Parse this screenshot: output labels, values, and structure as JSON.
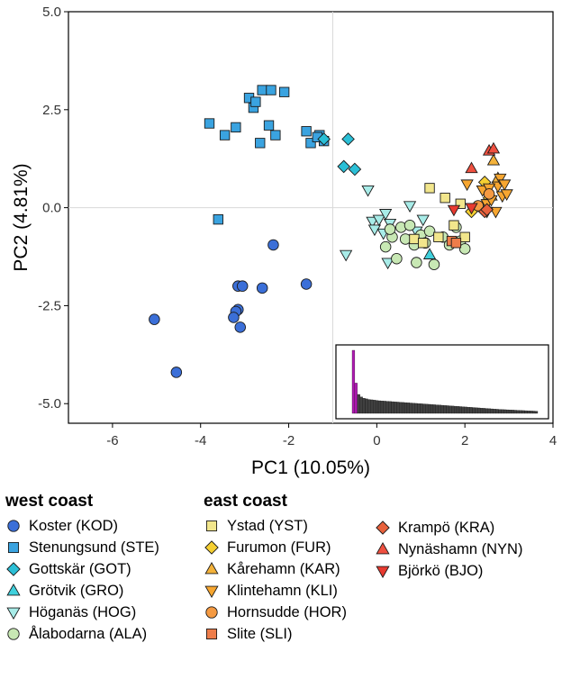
{
  "chart_data": {
    "type": "scatter",
    "xlabel": "PC1 (10.05%)",
    "ylabel": "PC2 (4.81%)",
    "xlim": [
      -7,
      4
    ],
    "ylim": [
      -5.5,
      5.0
    ],
    "xticks": [
      -6,
      -4,
      -2,
      0,
      2,
      4
    ],
    "yticks": [
      5.0,
      2.5,
      0.0,
      -2.5,
      -5.0
    ],
    "ytick_labels": [
      "5.0",
      "2.5",
      "0.0",
      "-2.5",
      "-5.0"
    ],
    "xtick_labels": [
      "-6",
      "-4",
      "-2",
      "0",
      "2",
      "4"
    ],
    "reference_lines": {
      "x": -1,
      "y": 0
    },
    "groups": [
      {
        "region": "west coast"
      },
      {
        "region": "east coast"
      }
    ],
    "series": [
      {
        "name": "Koster (KOD)",
        "region": "west",
        "shape": "circle",
        "color": "#3b6fd8",
        "x": [
          -5.05,
          -4.55,
          -3.15,
          -3.15,
          -3.05,
          -3.2,
          -3.25,
          -2.6,
          -2.35,
          -1.6,
          -3.1
        ],
        "y": [
          -2.85,
          -4.2,
          -2.6,
          -2.0,
          -2.0,
          -2.65,
          -2.8,
          -2.05,
          -0.95,
          -1.95,
          -3.05
        ]
      },
      {
        "name": "Stenungsund (STE)",
        "region": "west",
        "shape": "square",
        "color": "#3aa3e0",
        "x": [
          -3.8,
          -3.45,
          -3.2,
          -2.9,
          -2.8,
          -2.75,
          -2.6,
          -2.65,
          -2.45,
          -2.3,
          -2.1,
          -2.4,
          -1.6,
          -1.5,
          -1.3,
          -1.2,
          -1.35,
          -3.6
        ],
        "y": [
          2.15,
          1.85,
          2.05,
          2.8,
          2.55,
          2.7,
          3.0,
          1.65,
          2.1,
          1.85,
          2.95,
          3.0,
          1.95,
          1.65,
          1.85,
          1.7,
          1.8,
          -0.3
        ]
      },
      {
        "name": "Gottskär (GOT)",
        "region": "west",
        "shape": "diamond",
        "color": "#2bbfd6",
        "x": [
          -1.2,
          -0.65,
          -0.75,
          -0.5
        ],
        "y": [
          1.75,
          1.75,
          1.05,
          0.98
        ]
      },
      {
        "name": "Grötvik (GRO)",
        "region": "west",
        "shape": "triangle-up",
        "color": "#3fd0dc",
        "x": [
          1.2
        ],
        "y": [
          -1.2
        ]
      },
      {
        "name": "Höganäs (HOG)",
        "region": "west",
        "shape": "triangle-down",
        "color": "#a8ece8",
        "x": [
          -0.7,
          -0.2,
          -0.1,
          -0.05,
          0.05,
          0.15,
          0.25,
          0.3,
          0.75,
          0.9,
          1.05,
          0.2
        ],
        "y": [
          -1.2,
          0.45,
          -0.35,
          -0.55,
          -0.3,
          -0.65,
          -1.4,
          -0.4,
          0.05,
          -0.6,
          -0.3,
          -0.15
        ]
      },
      {
        "name": "Ålabodarna (ALA)",
        "region": "west",
        "shape": "circle",
        "color": "#c8e8b4",
        "x": [
          0.2,
          0.35,
          0.45,
          0.55,
          0.65,
          0.75,
          0.9,
          1.0,
          1.1,
          1.3,
          1.5,
          1.65,
          1.8,
          1.9,
          2.0,
          0.3,
          0.85,
          1.2
        ],
        "y": [
          -1.0,
          -0.75,
          -1.3,
          -0.5,
          -0.8,
          -0.45,
          -1.4,
          -0.7,
          -0.9,
          -1.45,
          -0.75,
          -0.95,
          -0.5,
          -0.85,
          -1.05,
          -0.55,
          -0.95,
          -0.6
        ]
      },
      {
        "name": "Ystad (YST)",
        "region": "east",
        "shape": "square",
        "color": "#f2e68c",
        "x": [
          0.85,
          1.05,
          1.2,
          1.4,
          1.55,
          1.75,
          1.9,
          2.0
        ],
        "y": [
          -0.8,
          -0.9,
          0.5,
          -0.75,
          0.25,
          -0.45,
          0.1,
          -0.75
        ]
      },
      {
        "name": "Furumon (FUR)",
        "region": "east",
        "shape": "diamond",
        "color": "#f5cf32",
        "x": [
          2.15,
          2.45,
          2.55
        ],
        "y": [
          -0.1,
          0.65,
          0.25
        ]
      },
      {
        "name": "Kårehamn (KAR)",
        "region": "east",
        "shape": "triangle-up",
        "color": "#f4b23a",
        "x": [
          2.6,
          2.65,
          2.75
        ],
        "y": [
          0.3,
          1.2,
          0.75
        ]
      },
      {
        "name": "Klintehamn (KLI)",
        "region": "east",
        "shape": "triangle-down",
        "color": "#f7a630",
        "x": [
          2.05,
          2.4,
          2.5,
          2.6,
          2.7,
          2.75,
          2.8,
          2.85,
          2.9,
          2.95,
          2.5,
          2.55
        ],
        "y": [
          0.6,
          0.45,
          0.1,
          0.2,
          -0.1,
          0.55,
          0.75,
          0.3,
          0.6,
          0.35,
          -0.1,
          0.5
        ]
      },
      {
        "name": "Hornsudde (HOR)",
        "region": "east",
        "shape": "circle",
        "color": "#f59a42",
        "x": [
          2.3,
          2.55
        ],
        "y": [
          0.05,
          0.35
        ]
      },
      {
        "name": "Slite (SLI)",
        "region": "east",
        "shape": "square",
        "color": "#ee7d4a",
        "x": [
          1.7,
          1.8
        ],
        "y": [
          -0.85,
          -0.9
        ]
      },
      {
        "name": "Krampö (KRA)",
        "region": "east",
        "shape": "diamond",
        "color": "#e8613c",
        "x": [
          2.45,
          2.5
        ],
        "y": [
          -0.1,
          -0.05
        ]
      },
      {
        "name": "Nynäshamn (NYN)",
        "region": "east",
        "shape": "triangle-up",
        "color": "#ef5040",
        "x": [
          2.15,
          2.55,
          2.65
        ],
        "y": [
          1.0,
          1.45,
          1.5
        ]
      },
      {
        "name": "Björkö (BJO)",
        "region": "east",
        "shape": "triangle-down",
        "color": "#e83a30",
        "x": [
          1.75,
          2.15
        ],
        "y": [
          -0.05,
          0.0
        ]
      }
    ],
    "inset": {
      "type": "bar",
      "description": "scree",
      "highlight_color": "#b01ab3",
      "bar_color": "#404040",
      "values": [
        1.0,
        0.48,
        0.3,
        0.26,
        0.24,
        0.23,
        0.22,
        0.215,
        0.21,
        0.205,
        0.2,
        0.197,
        0.194,
        0.191,
        0.188,
        0.185,
        0.182,
        0.179,
        0.176,
        0.173,
        0.17,
        0.167,
        0.164,
        0.161,
        0.158,
        0.155,
        0.152,
        0.149,
        0.146,
        0.143,
        0.14,
        0.137,
        0.134,
        0.131,
        0.128,
        0.125,
        0.122,
        0.119,
        0.116,
        0.113,
        0.11,
        0.107,
        0.104,
        0.101,
        0.098,
        0.095,
        0.092,
        0.089,
        0.086,
        0.083,
        0.08,
        0.077,
        0.074,
        0.071,
        0.068,
        0.065,
        0.062,
        0.06,
        0.058,
        0.056,
        0.054,
        0.052,
        0.05,
        0.048,
        0.046,
        0.044,
        0.042,
        0.04,
        0.038,
        0.036,
        0.034
      ],
      "highlighted": [
        0,
        1
      ]
    }
  },
  "legend": {
    "west_title": "west coast",
    "east_title": "east coast",
    "west": [
      "Koster (KOD)",
      "Stenungsund (STE)",
      "Gottskär (GOT)",
      "Grötvik (GRO)",
      "Höganäs (HOG)",
      "Ålabodarna (ALA)"
    ],
    "east1": [
      "Ystad (YST)",
      "Furumon (FUR)",
      "Kårehamn (KAR)",
      "Klintehamn (KLI)",
      "Hornsudde (HOR)",
      "Slite (SLI)"
    ],
    "east2": [
      "Krampö (KRA)",
      "Nynäshamn (NYN)",
      "Björkö (BJO)"
    ]
  }
}
